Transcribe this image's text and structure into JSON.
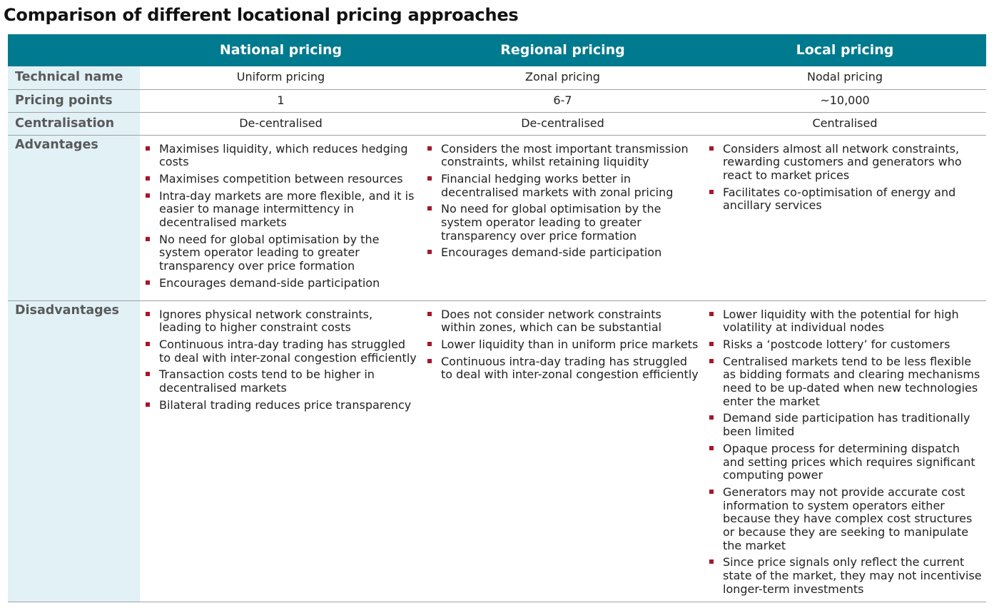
{
  "title": "Comparison of different locational pricing approaches",
  "columns": [
    "",
    "National pricing",
    "Regional pricing",
    "Local pricing"
  ],
  "rows": {
    "technical_name": {
      "label": "Technical name",
      "values": [
        "Uniform pricing",
        "Zonal pricing",
        "Nodal pricing"
      ]
    },
    "pricing_points": {
      "label": "Pricing points",
      "values": [
        "1",
        "6-7",
        "~10,000"
      ]
    },
    "centralisation": {
      "label": "Centralisation",
      "values": [
        "De-centralised",
        "De-centralised",
        "Centralised"
      ]
    },
    "advantages": {
      "label": "Advantages",
      "national": [
        "Maximises liquidity, which reduces hedging costs",
        "Maximises competition between resources",
        "Intra-day markets are more flexible, and it is easier to manage intermittency in decentralised markets",
        "No need for global optimisation by the system operator leading to greater transparency over price formation",
        "Encourages demand-side participation"
      ],
      "regional": [
        "Considers the most important transmission constraints, whilst retaining liquidity",
        "Financial hedging works better in decentralised markets with zonal pricing",
        "No need for global optimisation by the system operator leading to greater transparency over price formation",
        "Encourages demand-side participation"
      ],
      "local": [
        "Considers almost all network constraints, rewarding customers and generators who react to market prices",
        "Facilitates co-optimisation of energy and ancillary services"
      ]
    },
    "disadvantages": {
      "label": "Disadvantages",
      "national": [
        "Ignores physical network constraints, leading to higher constraint costs",
        "Continuous intra-day trading has struggled to deal with inter-zonal congestion efficiently",
        "Transaction costs tend to be higher in decentralised markets",
        "Bilateral trading reduces price transparency"
      ],
      "regional": [
        "Does not consider network constraints within zones, which can be substantial",
        "Lower liquidity than in uniform price markets",
        "Continuous intra-day trading has struggled to deal with inter-zonal congestion efficiently"
      ],
      "local": [
        "Lower liquidity with the potential for high volatility at individual nodes",
        "Risks a ‘postcode lottery’ for customers",
        "Centralised markets tend to be less flexible as bidding formats and clearing mechanisms need to be up-dated when new technologies enter the market",
        "Demand side participation has traditionally been limited",
        "Opaque process for determining dispatch and setting prices which requires significant computing power",
        "Generators may not provide accurate cost information to system operators either because they have complex cost structures or because they are seeking to manipulate the market",
        "Since price signals only reflect the current state of the market, they may not incentivise longer-term investments"
      ]
    }
  },
  "colors": {
    "header_bg": "#007a8e",
    "rowhead_bg": "#e1f1f6",
    "bullet": "#a8162a"
  }
}
